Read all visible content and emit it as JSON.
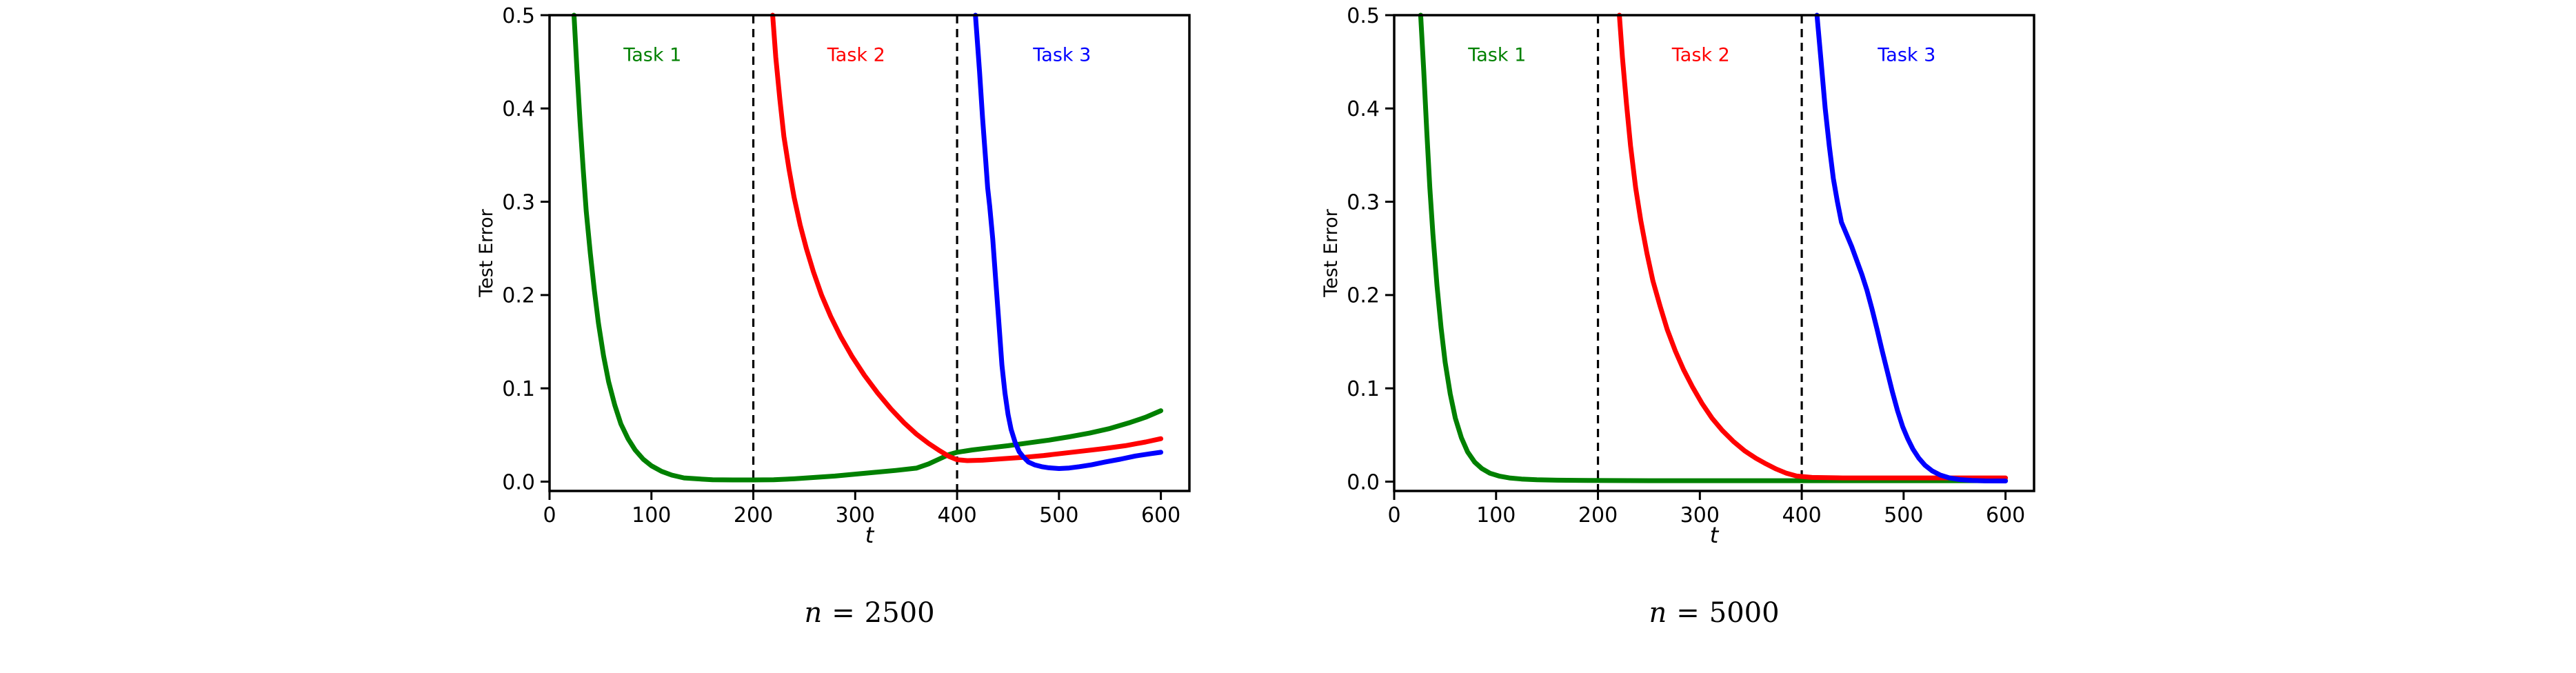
{
  "figure": {
    "background": "#ffffff",
    "text_color": "#000000"
  },
  "chart_data": [
    {
      "type": "line",
      "title": "n = 2500",
      "caption": {
        "var": "n",
        "eq": "=",
        "val": "2500"
      },
      "xlabel": "t",
      "ylabel": "Test Error",
      "xlim": [
        0,
        628
      ],
      "ylim": [
        -0.01,
        0.5
      ],
      "xticks": [
        0,
        100,
        200,
        300,
        400,
        500,
        600
      ],
      "xtick_labels": [
        "0",
        "100",
        "200",
        "300",
        "400",
        "500",
        "600"
      ],
      "yticks": [
        0.0,
        0.1,
        0.2,
        0.3,
        0.4,
        0.5
      ],
      "ytick_labels": [
        "0.0",
        "0.1",
        "0.2",
        "0.3",
        "0.4",
        "0.5"
      ],
      "grid": false,
      "legend": "none",
      "vlines": {
        "x": [
          200,
          400
        ],
        "style": "dashed",
        "color": "#000000"
      },
      "annotations": [
        {
          "text": "Task 1",
          "x": 101,
          "y": 0.458,
          "color": "#008000"
        },
        {
          "text": "Task 2",
          "x": 301,
          "y": 0.458,
          "color": "#ff0000"
        },
        {
          "text": "Task 3",
          "x": 503,
          "y": 0.458,
          "color": "#0000ff"
        }
      ],
      "series": [
        {
          "name": "Task 1",
          "color": "#008000",
          "x": [
            24,
            27,
            30,
            33,
            36,
            40,
            44,
            48,
            53,
            58,
            64,
            70,
            77,
            84,
            92,
            100,
            110,
            120,
            132,
            145,
            160,
            180,
            200,
            220,
            240,
            260,
            280,
            300,
            320,
            340,
            360,
            372,
            382,
            392,
            400,
            415,
            430,
            450,
            470,
            490,
            510,
            530,
            550,
            570,
            585,
            600
          ],
          "y": [
            0.5,
            0.44,
            0.385,
            0.335,
            0.29,
            0.245,
            0.205,
            0.17,
            0.135,
            0.107,
            0.082,
            0.062,
            0.046,
            0.034,
            0.024,
            0.017,
            0.011,
            0.007,
            0.004,
            0.003,
            0.002,
            0.0018,
            0.0018,
            0.002,
            0.003,
            0.0045,
            0.006,
            0.008,
            0.01,
            0.012,
            0.0145,
            0.019,
            0.024,
            0.029,
            0.0315,
            0.034,
            0.036,
            0.0385,
            0.0415,
            0.0445,
            0.048,
            0.052,
            0.057,
            0.0635,
            0.069,
            0.076
          ]
        },
        {
          "name": "Task 2",
          "color": "#ff0000",
          "x": [
            219,
            222,
            226,
            230,
            235,
            240,
            246,
            252,
            259,
            267,
            276,
            286,
            297,
            309,
            322,
            335,
            348,
            360,
            372,
            383,
            392,
            400,
            410,
            425,
            445,
            465,
            485,
            505,
            525,
            545,
            565,
            585,
            600
          ],
          "y": [
            0.5,
            0.455,
            0.41,
            0.37,
            0.335,
            0.305,
            0.275,
            0.25,
            0.225,
            0.2,
            0.177,
            0.155,
            0.134,
            0.114,
            0.095,
            0.078,
            0.063,
            0.051,
            0.041,
            0.033,
            0.027,
            0.0235,
            0.0225,
            0.023,
            0.0245,
            0.026,
            0.028,
            0.0305,
            0.033,
            0.0355,
            0.0385,
            0.0425,
            0.046
          ]
        },
        {
          "name": "Task 3",
          "color": "#0000ff",
          "x": [
            418,
            422,
            425,
            428,
            430,
            432,
            435,
            438,
            441,
            444,
            447,
            450,
            453,
            457,
            461,
            465,
            470,
            476,
            483,
            490,
            500,
            510,
            520,
            532,
            545,
            560,
            575,
            590,
            600
          ],
          "y": [
            0.5,
            0.44,
            0.39,
            0.345,
            0.315,
            0.295,
            0.26,
            0.215,
            0.17,
            0.125,
            0.095,
            0.072,
            0.056,
            0.042,
            0.032,
            0.0265,
            0.021,
            0.018,
            0.016,
            0.0148,
            0.014,
            0.0146,
            0.016,
            0.018,
            0.021,
            0.024,
            0.0275,
            0.03,
            0.0315
          ]
        }
      ]
    },
    {
      "type": "line",
      "title": "n = 5000",
      "caption": {
        "var": "n",
        "eq": "=",
        "val": "5000"
      },
      "xlabel": "t",
      "ylabel": "Test Error",
      "xlim": [
        0,
        628
      ],
      "ylim": [
        -0.01,
        0.5
      ],
      "xticks": [
        0,
        100,
        200,
        300,
        400,
        500,
        600
      ],
      "xtick_labels": [
        "0",
        "100",
        "200",
        "300",
        "400",
        "500",
        "600"
      ],
      "yticks": [
        0.0,
        0.1,
        0.2,
        0.3,
        0.4,
        0.5
      ],
      "ytick_labels": [
        "0.0",
        "0.1",
        "0.2",
        "0.3",
        "0.4",
        "0.5"
      ],
      "grid": false,
      "legend": "none",
      "vlines": {
        "x": [
          200,
          400
        ],
        "style": "dashed",
        "color": "#000000"
      },
      "annotations": [
        {
          "text": "Task 1",
          "x": 101,
          "y": 0.458,
          "color": "#008000"
        },
        {
          "text": "Task 2",
          "x": 301,
          "y": 0.458,
          "color": "#ff0000"
        },
        {
          "text": "Task 3",
          "x": 503,
          "y": 0.458,
          "color": "#0000ff"
        }
      ],
      "series": [
        {
          "name": "Task 1",
          "color": "#008000",
          "x": [
            26,
            29,
            32,
            35,
            38,
            42,
            46,
            50,
            55,
            60,
            66,
            72,
            79,
            86,
            94,
            103,
            113,
            125,
            140,
            160,
            190,
            250,
            350,
            450,
            600
          ],
          "y": [
            0.5,
            0.44,
            0.375,
            0.315,
            0.265,
            0.21,
            0.165,
            0.128,
            0.094,
            0.068,
            0.047,
            0.032,
            0.021,
            0.014,
            0.009,
            0.006,
            0.004,
            0.0028,
            0.002,
            0.0015,
            0.0012,
            0.001,
            0.001,
            0.001,
            0.001
          ]
        },
        {
          "name": "Task 2",
          "color": "#ff0000",
          "x": [
            221,
            224,
            228,
            232,
            237,
            242,
            248,
            254,
            261,
            268,
            276,
            284,
            293,
            302,
            312,
            322,
            333,
            344,
            355,
            365,
            375,
            385,
            395,
            410,
            440,
            480,
            520,
            560,
            600
          ],
          "y": [
            0.5,
            0.455,
            0.405,
            0.36,
            0.315,
            0.28,
            0.245,
            0.215,
            0.188,
            0.163,
            0.14,
            0.12,
            0.101,
            0.084,
            0.068,
            0.055,
            0.043,
            0.033,
            0.025,
            0.019,
            0.0135,
            0.009,
            0.006,
            0.0045,
            0.004,
            0.004,
            0.004,
            0.004,
            0.004
          ]
        },
        {
          "name": "Task 3",
          "color": "#0000ff",
          "x": [
            415,
            419,
            423,
            427,
            431,
            435,
            439,
            444,
            449,
            454,
            459,
            464,
            469,
            474,
            479,
            484,
            489,
            494,
            499,
            504,
            509,
            515,
            521,
            528,
            536,
            545,
            555,
            567,
            580,
            600
          ],
          "y": [
            0.5,
            0.45,
            0.4,
            0.36,
            0.325,
            0.3,
            0.278,
            0.265,
            0.252,
            0.237,
            0.222,
            0.205,
            0.185,
            0.163,
            0.14,
            0.118,
            0.096,
            0.076,
            0.059,
            0.046,
            0.035,
            0.025,
            0.0175,
            0.0115,
            0.007,
            0.004,
            0.0022,
            0.0012,
            0.0008,
            0.0007
          ]
        }
      ]
    }
  ]
}
